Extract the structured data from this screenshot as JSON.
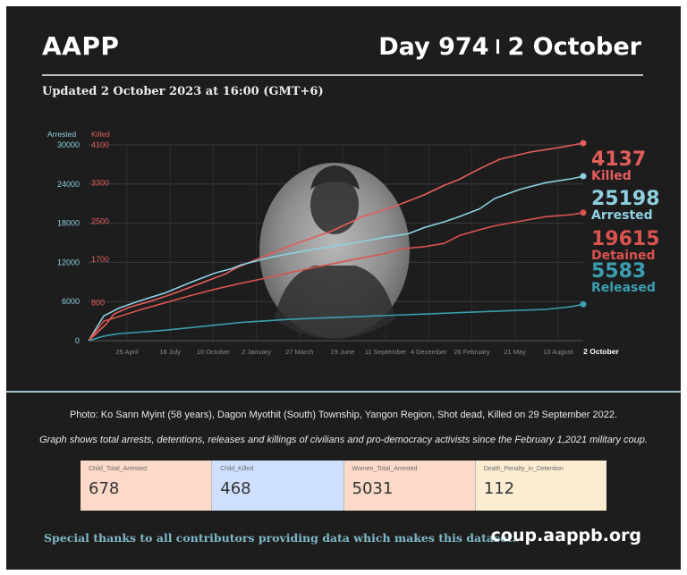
{
  "header": {
    "brand": "AAPP",
    "day_label": "Day 974",
    "date_label": "2 October",
    "updated": "Updated 2 October 2023 at 16:00 (GMT+6)"
  },
  "chart_data": {
    "type": "line",
    "y_axes": {
      "left_arrested": {
        "label": "Arrested",
        "ticks": [
          "0",
          "6000",
          "12000",
          "18000",
          "24000",
          "30000"
        ],
        "range": [
          0,
          30000
        ]
      },
      "right_killed": {
        "label": "Killed",
        "ticks": [
          "800",
          "1700",
          "2500",
          "3300",
          "4100"
        ],
        "range": [
          0,
          4100
        ]
      }
    },
    "x_tick_labels": [
      "25 April",
      "18 July",
      "10 October",
      "2 January",
      "27 March",
      "19 June",
      "11 September",
      "4 December",
      "26 February",
      "21 May",
      "13 August",
      "2 October"
    ],
    "x_range_days": [
      0,
      974
    ],
    "series": [
      {
        "name": "Killed",
        "axis": "right_killed",
        "color": "#e45d5d",
        "end_value": "4137",
        "x": [
          0,
          35,
          50,
          80,
          120,
          160,
          200,
          240,
          270,
          290,
          330,
          400,
          480,
          540,
          600,
          660,
          700,
          730,
          770,
          810,
          870,
          930,
          974
        ],
        "y": [
          0,
          350,
          560,
          700,
          820,
          960,
          1120,
          1280,
          1400,
          1520,
          1700,
          2000,
          2300,
          2600,
          2800,
          3050,
          3250,
          3380,
          3600,
          3800,
          3950,
          4050,
          4137
        ]
      },
      {
        "name": "Arrested",
        "axis": "left_arrested",
        "color": "#8fd0e0",
        "end_value": "25198",
        "x": [
          0,
          30,
          60,
          100,
          150,
          200,
          250,
          280,
          300,
          330,
          360,
          400,
          450,
          500,
          540,
          580,
          630,
          660,
          700,
          730,
          770,
          800,
          850,
          900,
          950,
          974
        ],
        "y": [
          0,
          3800,
          5000,
          6100,
          7300,
          8900,
          10400,
          11000,
          11600,
          12200,
          12800,
          13400,
          14100,
          14700,
          15200,
          15800,
          16400,
          17300,
          18200,
          19000,
          20200,
          21800,
          23200,
          24200,
          24800,
          25198
        ]
      },
      {
        "name": "Detained",
        "axis": "left_arrested",
        "color": "#d9534f",
        "end_value": "19615",
        "x": [
          0,
          30,
          60,
          100,
          150,
          200,
          250,
          300,
          350,
          400,
          450,
          500,
          540,
          580,
          620,
          660,
          700,
          730,
          770,
          800,
          850,
          900,
          950,
          974
        ],
        "y": [
          0,
          3000,
          3700,
          4700,
          5800,
          6900,
          7900,
          8800,
          9600,
          10500,
          11300,
          12100,
          12700,
          13300,
          14100,
          14400,
          14900,
          16100,
          17000,
          17600,
          18300,
          19000,
          19300,
          19615
        ]
      },
      {
        "name": "Released",
        "axis": "left_arrested",
        "color": "#3b9fb0",
        "end_value": "5583",
        "x": [
          0,
          30,
          60,
          100,
          150,
          200,
          300,
          400,
          500,
          600,
          700,
          800,
          900,
          950,
          974
        ],
        "y": [
          0,
          700,
          1100,
          1300,
          1600,
          2000,
          2800,
          3300,
          3600,
          3900,
          4200,
          4500,
          4800,
          5200,
          5583
        ]
      }
    ],
    "end_labels": {
      "killed": {
        "value": "4137",
        "label": "Killed"
      },
      "arrested": {
        "value": "25198",
        "label": "Arrested"
      },
      "detained": {
        "value": "19615",
        "label": "Detained"
      },
      "released": {
        "value": "5583",
        "label": "Released"
      }
    }
  },
  "photo_caption": "Photo: Ko Sann Myint (58 years), Dagon Myothit (South) Township, Yangon Region, Shot dead, Killed on 29 September 2022.",
  "graph_note": "Graph shows total arrests, detentions, releases and killings of civilians and pro-democracy activists since the February 1,2021 military coup.",
  "stats": [
    {
      "label": "Child_Total_Arrested",
      "value": "678",
      "color": "#fcd9c8"
    },
    {
      "label": "Child_Killed",
      "value": "468",
      "color": "#cfe0ff"
    },
    {
      "label": "Women_Total_Arrested",
      "value": "5031",
      "color": "#fcd9c8"
    },
    {
      "label": "Death_Penalty_in_Detention",
      "value": "112",
      "color": "#fbecd2"
    }
  ],
  "footer": {
    "thanks": "Special thanks to all contributors providing data which makes this dataset.",
    "site": "coup.aappb.org"
  }
}
